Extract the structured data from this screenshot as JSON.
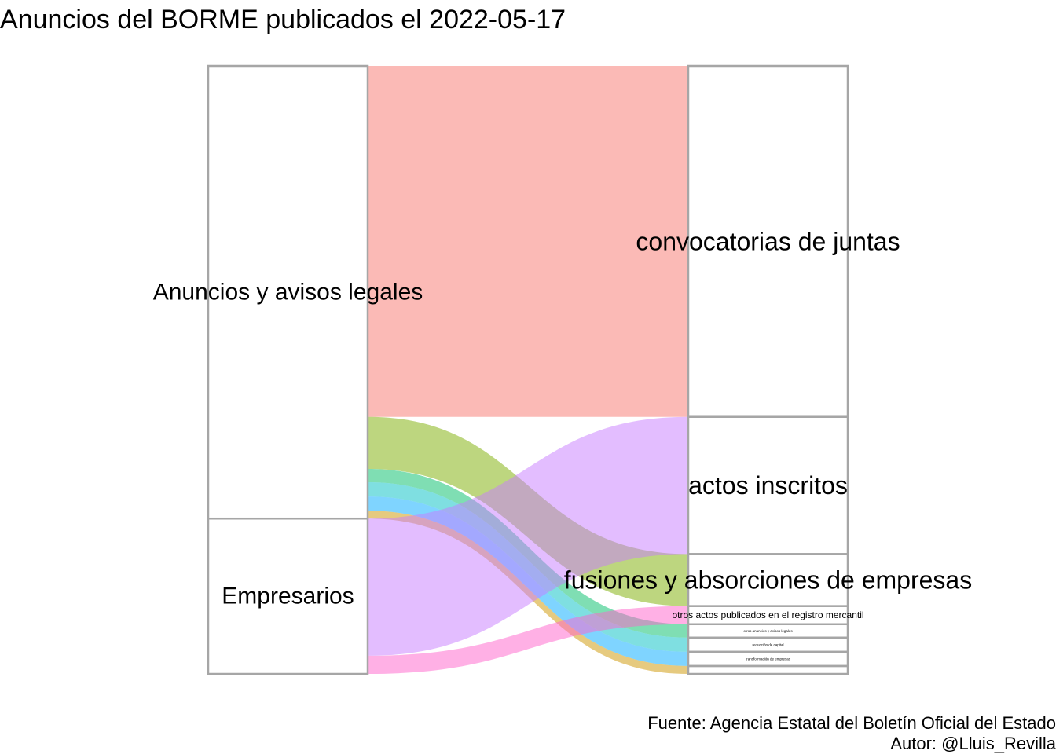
{
  "title": "Anuncios del BORME publicados el 2022-05-17",
  "caption": {
    "source": "Fuente: Agencia Estatal del Boletín Oficial del Estado",
    "author": "Autor: @Lluis_Revilla"
  },
  "chart_data": {
    "type": "alluvial",
    "title": "Anuncios del BORME publicados el 2022-05-17",
    "left_nodes": [
      "Anuncios y avisos legales",
      "Empresarios"
    ],
    "right_nodes": [
      "convocatorias de juntas",
      "actos inscritos",
      "fusiones y absorciones de empresas",
      "otros actos publicados en el registro mercantil",
      "otros anuncios y avisos legales",
      "reducción de capital",
      "transformación de empresas",
      ""
    ],
    "flows": [
      {
        "from": "Anuncios y avisos legales",
        "to": "convocatorias de juntas",
        "value": 445,
        "color": "#F8766D"
      },
      {
        "from": "Anuncios y avisos legales",
        "to": "fusiones y absorciones de empresas",
        "value": 66,
        "color": "#7CAE00"
      },
      {
        "from": "Anuncios y avisos legales",
        "to": "otros anuncios y avisos legales",
        "value": 17,
        "color": "#00BE67"
      },
      {
        "from": "Anuncios y avisos legales",
        "to": "reducción de capital",
        "value": 18,
        "color": "#00BFC4"
      },
      {
        "from": "Anuncios y avisos legales",
        "to": "transformación de empresas",
        "value": 18,
        "color": "#00A9FF"
      },
      {
        "from": "Anuncios y avisos legales",
        "to": "",
        "value": 10,
        "color": "#CD9600"
      },
      {
        "from": "Empresarios",
        "to": "actos inscritos",
        "value": 174,
        "color": "#C77CFF"
      },
      {
        "from": "Empresarios",
        "to": "otros actos publicados en el registro mercantil",
        "value": 23,
        "color": "#FF61CC"
      }
    ]
  }
}
